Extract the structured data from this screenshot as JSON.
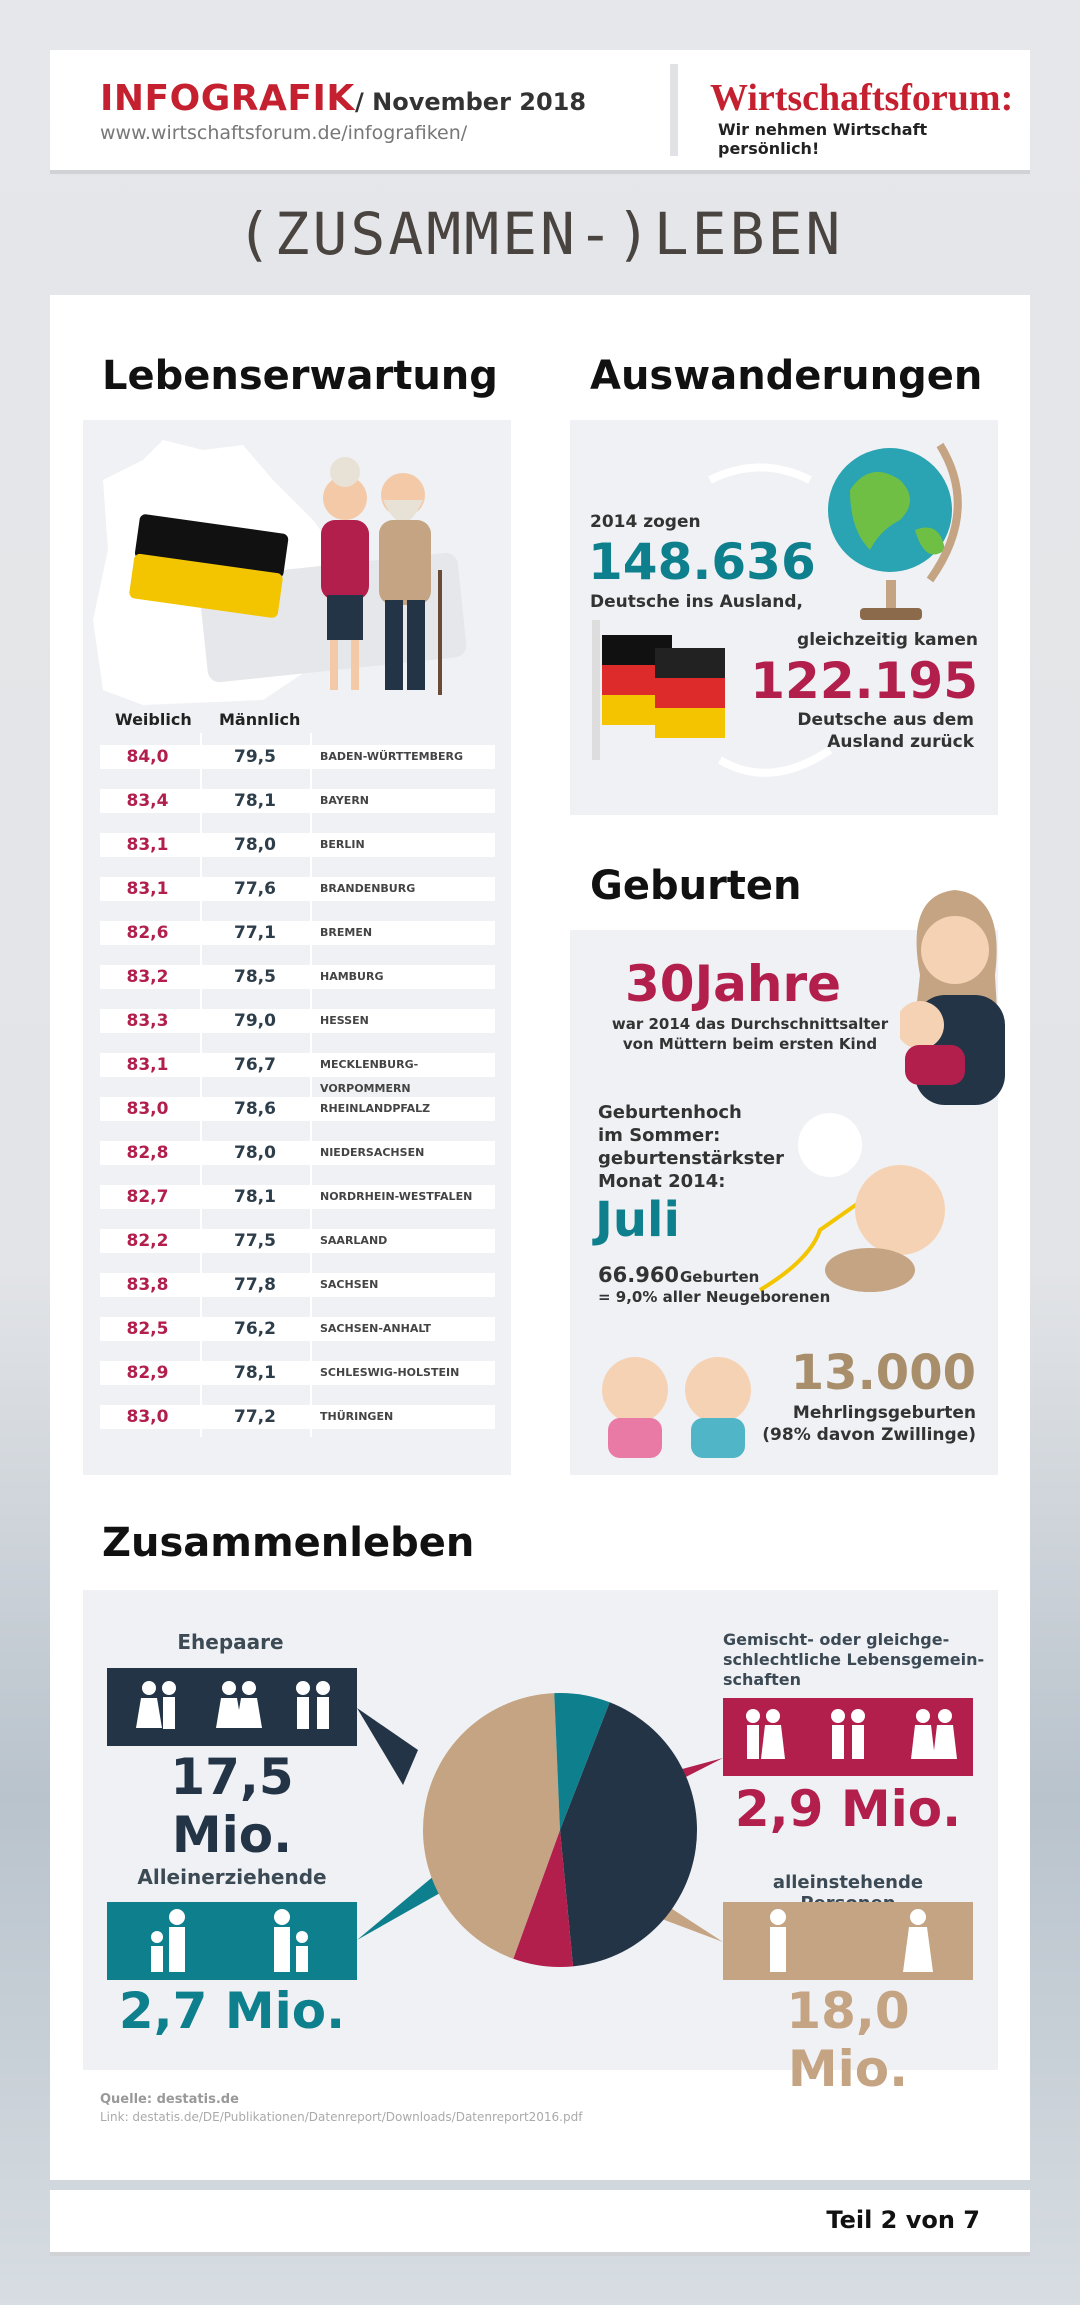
{
  "header": {
    "title": "INFOGRAFIK",
    "date": "/ November 2018",
    "url": "www.wirtschaftsforum.de/infografiken/",
    "brand": "Wirtschaftsforum:",
    "slogan": "Wir nehmen Wirtschaft persönlich!"
  },
  "page_title": "(ZUSAMMEN-)LEBEN",
  "life": {
    "heading": "Lebenserwartung",
    "col_w": "Weiblich",
    "col_m": "Männlich",
    "rows": [
      {
        "w": "84,0",
        "m": "79,5",
        "s": "BADEN-WÜRTTEMBERG"
      },
      {
        "w": "83,4",
        "m": "78,1",
        "s": "BAYERN"
      },
      {
        "w": "83,1",
        "m": "78,0",
        "s": "BERLIN"
      },
      {
        "w": "83,1",
        "m": "77,6",
        "s": "BRANDENBURG"
      },
      {
        "w": "82,6",
        "m": "77,1",
        "s": "BREMEN"
      },
      {
        "w": "83,2",
        "m": "78,5",
        "s": "HAMBURG"
      },
      {
        "w": "83,3",
        "m": "79,0",
        "s": "HESSEN"
      },
      {
        "w": "83,1",
        "m": "76,7",
        "s": "MECKLENBURG-VORPOMMERN"
      },
      {
        "w": "83,0",
        "m": "78,6",
        "s": "RHEINLANDPFALZ"
      },
      {
        "w": "82,8",
        "m": "78,0",
        "s": "NIEDERSACHSEN"
      },
      {
        "w": "82,7",
        "m": "78,1",
        "s": "NORDRHEIN-WESTFALEN"
      },
      {
        "w": "82,2",
        "m": "77,5",
        "s": "SAARLAND"
      },
      {
        "w": "83,8",
        "m": "77,8",
        "s": "SACHSEN"
      },
      {
        "w": "82,5",
        "m": "76,2",
        "s": "SACHSEN-ANHALT"
      },
      {
        "w": "82,9",
        "m": "78,1",
        "s": "SCHLESWIG-HOLSTEIN"
      },
      {
        "w": "83,0",
        "m": "77,2",
        "s": "THÜRINGEN"
      }
    ]
  },
  "emig": {
    "heading": "Auswanderungen",
    "l1": "2014 zogen",
    "n1": "148.636",
    "l2": "Deutsche ins Ausland,",
    "l3": "gleichzeitig kamen",
    "n2": "122.195",
    "l4": "Deutsche aus dem",
    "l5": "Ausland zurück"
  },
  "births": {
    "heading": "Geburten",
    "age": "30Jahre",
    "age_t1": "war 2014 das Durchschnittsalter",
    "age_t2": "von Müttern beim ersten Kind",
    "peak_1": "Geburtenhoch",
    "peak_2": "im Sommer:",
    "peak_3": "geburtenstärkster",
    "peak_4": "Monat 2014:",
    "month": "Juli",
    "count": "66.960",
    "count_l": "Geburten",
    "share": "= 9,0% aller Neugeborenen",
    "multi": "13.000",
    "multi_l1": "Mehrlingsgeburten",
    "multi_l2": "(98% davon Zwillinge)"
  },
  "together": {
    "heading": "Zusammenleben",
    "married_l": "Ehepaare",
    "married_v": "17,5 Mio.",
    "single_parent_l": "Alleinerziehende",
    "single_parent_v": "2,7 Mio.",
    "mixed_l1": "Gemischt- oder gleichge-",
    "mixed_l2": "schlechtliche Lebensgemein-",
    "mixed_l3": "schaften",
    "mixed_v": "2,9 Mio.",
    "alone_l": "alleinstehende Personen",
    "alone_v": "18,0 Mio."
  },
  "chart_data": {
    "type": "pie",
    "categories": [
      "Ehepaare",
      "Gemischt- oder gleichgeschlechtliche Lebensgemeinschaften",
      "alleinstehende Personen",
      "Alleinerziehende"
    ],
    "values": [
      17.5,
      2.9,
      18.0,
      2.7
    ],
    "colors": [
      "#243447",
      "#b21f4c",
      "#c4a482",
      "#0e7f8c"
    ]
  },
  "source": {
    "label": "Quelle: destatis.de",
    "link": "Link: destatis.de/DE/Publikationen/Datenreport/Downloads/Datenreport2016.pdf"
  },
  "footer": {
    "page": "Teil 2 von 7"
  },
  "colors": {
    "red": "#c5202f",
    "crimson": "#b21f4c",
    "teal": "#0e7f8c",
    "navy": "#243447",
    "tan": "#c4a482",
    "panel": "#f0f1f4"
  }
}
